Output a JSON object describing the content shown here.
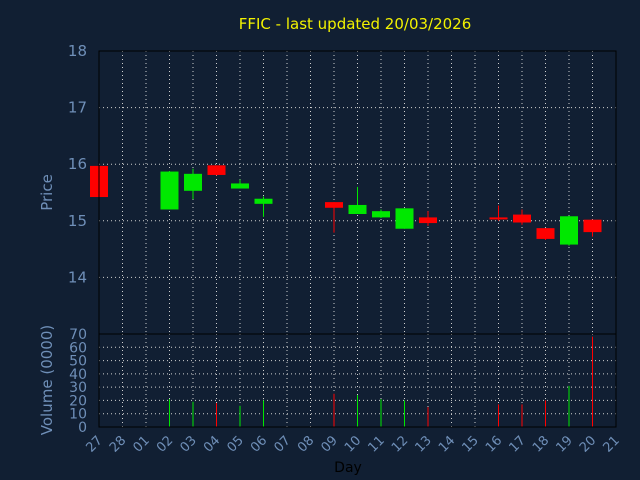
{
  "chart_data": {
    "type": "candlestick",
    "title": "FFIC - last updated 20/03/2026",
    "price_ylabel": "Price",
    "volume_ylabel": "Volume (0000)",
    "xlabel": "Day",
    "categories": [
      "27",
      "28",
      "01",
      "02",
      "03",
      "04",
      "05",
      "06",
      "07",
      "08",
      "09",
      "10",
      "11",
      "12",
      "13",
      "14",
      "15",
      "16",
      "17",
      "18",
      "19",
      "20",
      "21"
    ],
    "price_ylim": [
      13,
      18
    ],
    "price_yticks": [
      14,
      15,
      16,
      17,
      18
    ],
    "volume_ylim": [
      0,
      70
    ],
    "volume_yticks": [
      0,
      10,
      20,
      30,
      40,
      50,
      60,
      70
    ],
    "grid": true,
    "colors": {
      "background": "#111f33",
      "up": "#00e800",
      "down": "#ff0000",
      "grid": "#d0d0d0",
      "title": "#f2f200",
      "tick": "#6f8fb8"
    },
    "candles": [
      {
        "x": "27",
        "open": 15.97,
        "high": 15.97,
        "low": 15.42,
        "close": 15.42
      },
      {
        "x": "02",
        "open": 15.2,
        "high": 15.88,
        "low": 15.2,
        "close": 15.87
      },
      {
        "x": "03",
        "open": 15.53,
        "high": 15.92,
        "low": 15.38,
        "close": 15.83
      },
      {
        "x": "04",
        "open": 15.98,
        "high": 15.98,
        "low": 15.8,
        "close": 15.81
      },
      {
        "x": "05",
        "open": 15.57,
        "high": 15.73,
        "low": 15.57,
        "close": 15.66
      },
      {
        "x": "06",
        "open": 15.3,
        "high": 15.43,
        "low": 15.07,
        "close": 15.39
      },
      {
        "x": "09",
        "open": 15.33,
        "high": 15.33,
        "low": 14.79,
        "close": 15.23
      },
      {
        "x": "10",
        "open": 15.12,
        "high": 15.6,
        "low": 15.12,
        "close": 15.28
      },
      {
        "x": "11",
        "open": 15.06,
        "high": 15.2,
        "low": 15.05,
        "close": 15.17
      },
      {
        "x": "12",
        "open": 14.86,
        "high": 15.22,
        "low": 14.86,
        "close": 15.22
      },
      {
        "x": "13",
        "open": 15.06,
        "high": 15.17,
        "low": 14.91,
        "close": 14.96
      },
      {
        "x": "16",
        "open": 15.06,
        "high": 15.27,
        "low": 15.0,
        "close": 15.03
      },
      {
        "x": "17",
        "open": 15.11,
        "high": 15.2,
        "low": 14.93,
        "close": 14.97
      },
      {
        "x": "18",
        "open": 14.87,
        "high": 14.87,
        "low": 14.66,
        "close": 14.68
      },
      {
        "x": "19",
        "open": 14.58,
        "high": 15.09,
        "low": 14.56,
        "close": 15.08
      },
      {
        "x": "20",
        "open": 15.02,
        "high": 15.02,
        "low": 14.72,
        "close": 14.8
      }
    ],
    "volume": [
      {
        "x": "02",
        "value": 21,
        "dir": "up"
      },
      {
        "x": "03",
        "value": 19,
        "dir": "up"
      },
      {
        "x": "04",
        "value": 18,
        "dir": "down"
      },
      {
        "x": "05",
        "value": 16,
        "dir": "up"
      },
      {
        "x": "06",
        "value": 20,
        "dir": "up"
      },
      {
        "x": "09",
        "value": 25,
        "dir": "down"
      },
      {
        "x": "10",
        "value": 24,
        "dir": "up"
      },
      {
        "x": "11",
        "value": 21,
        "dir": "up"
      },
      {
        "x": "12",
        "value": 20,
        "dir": "up"
      },
      {
        "x": "13",
        "value": 15,
        "dir": "down"
      },
      {
        "x": "16",
        "value": 17,
        "dir": "down"
      },
      {
        "x": "17",
        "value": 17,
        "dir": "down"
      },
      {
        "x": "18",
        "value": 20,
        "dir": "down"
      },
      {
        "x": "19",
        "value": 31,
        "dir": "up"
      },
      {
        "x": "20",
        "value": 68,
        "dir": "down"
      }
    ]
  }
}
